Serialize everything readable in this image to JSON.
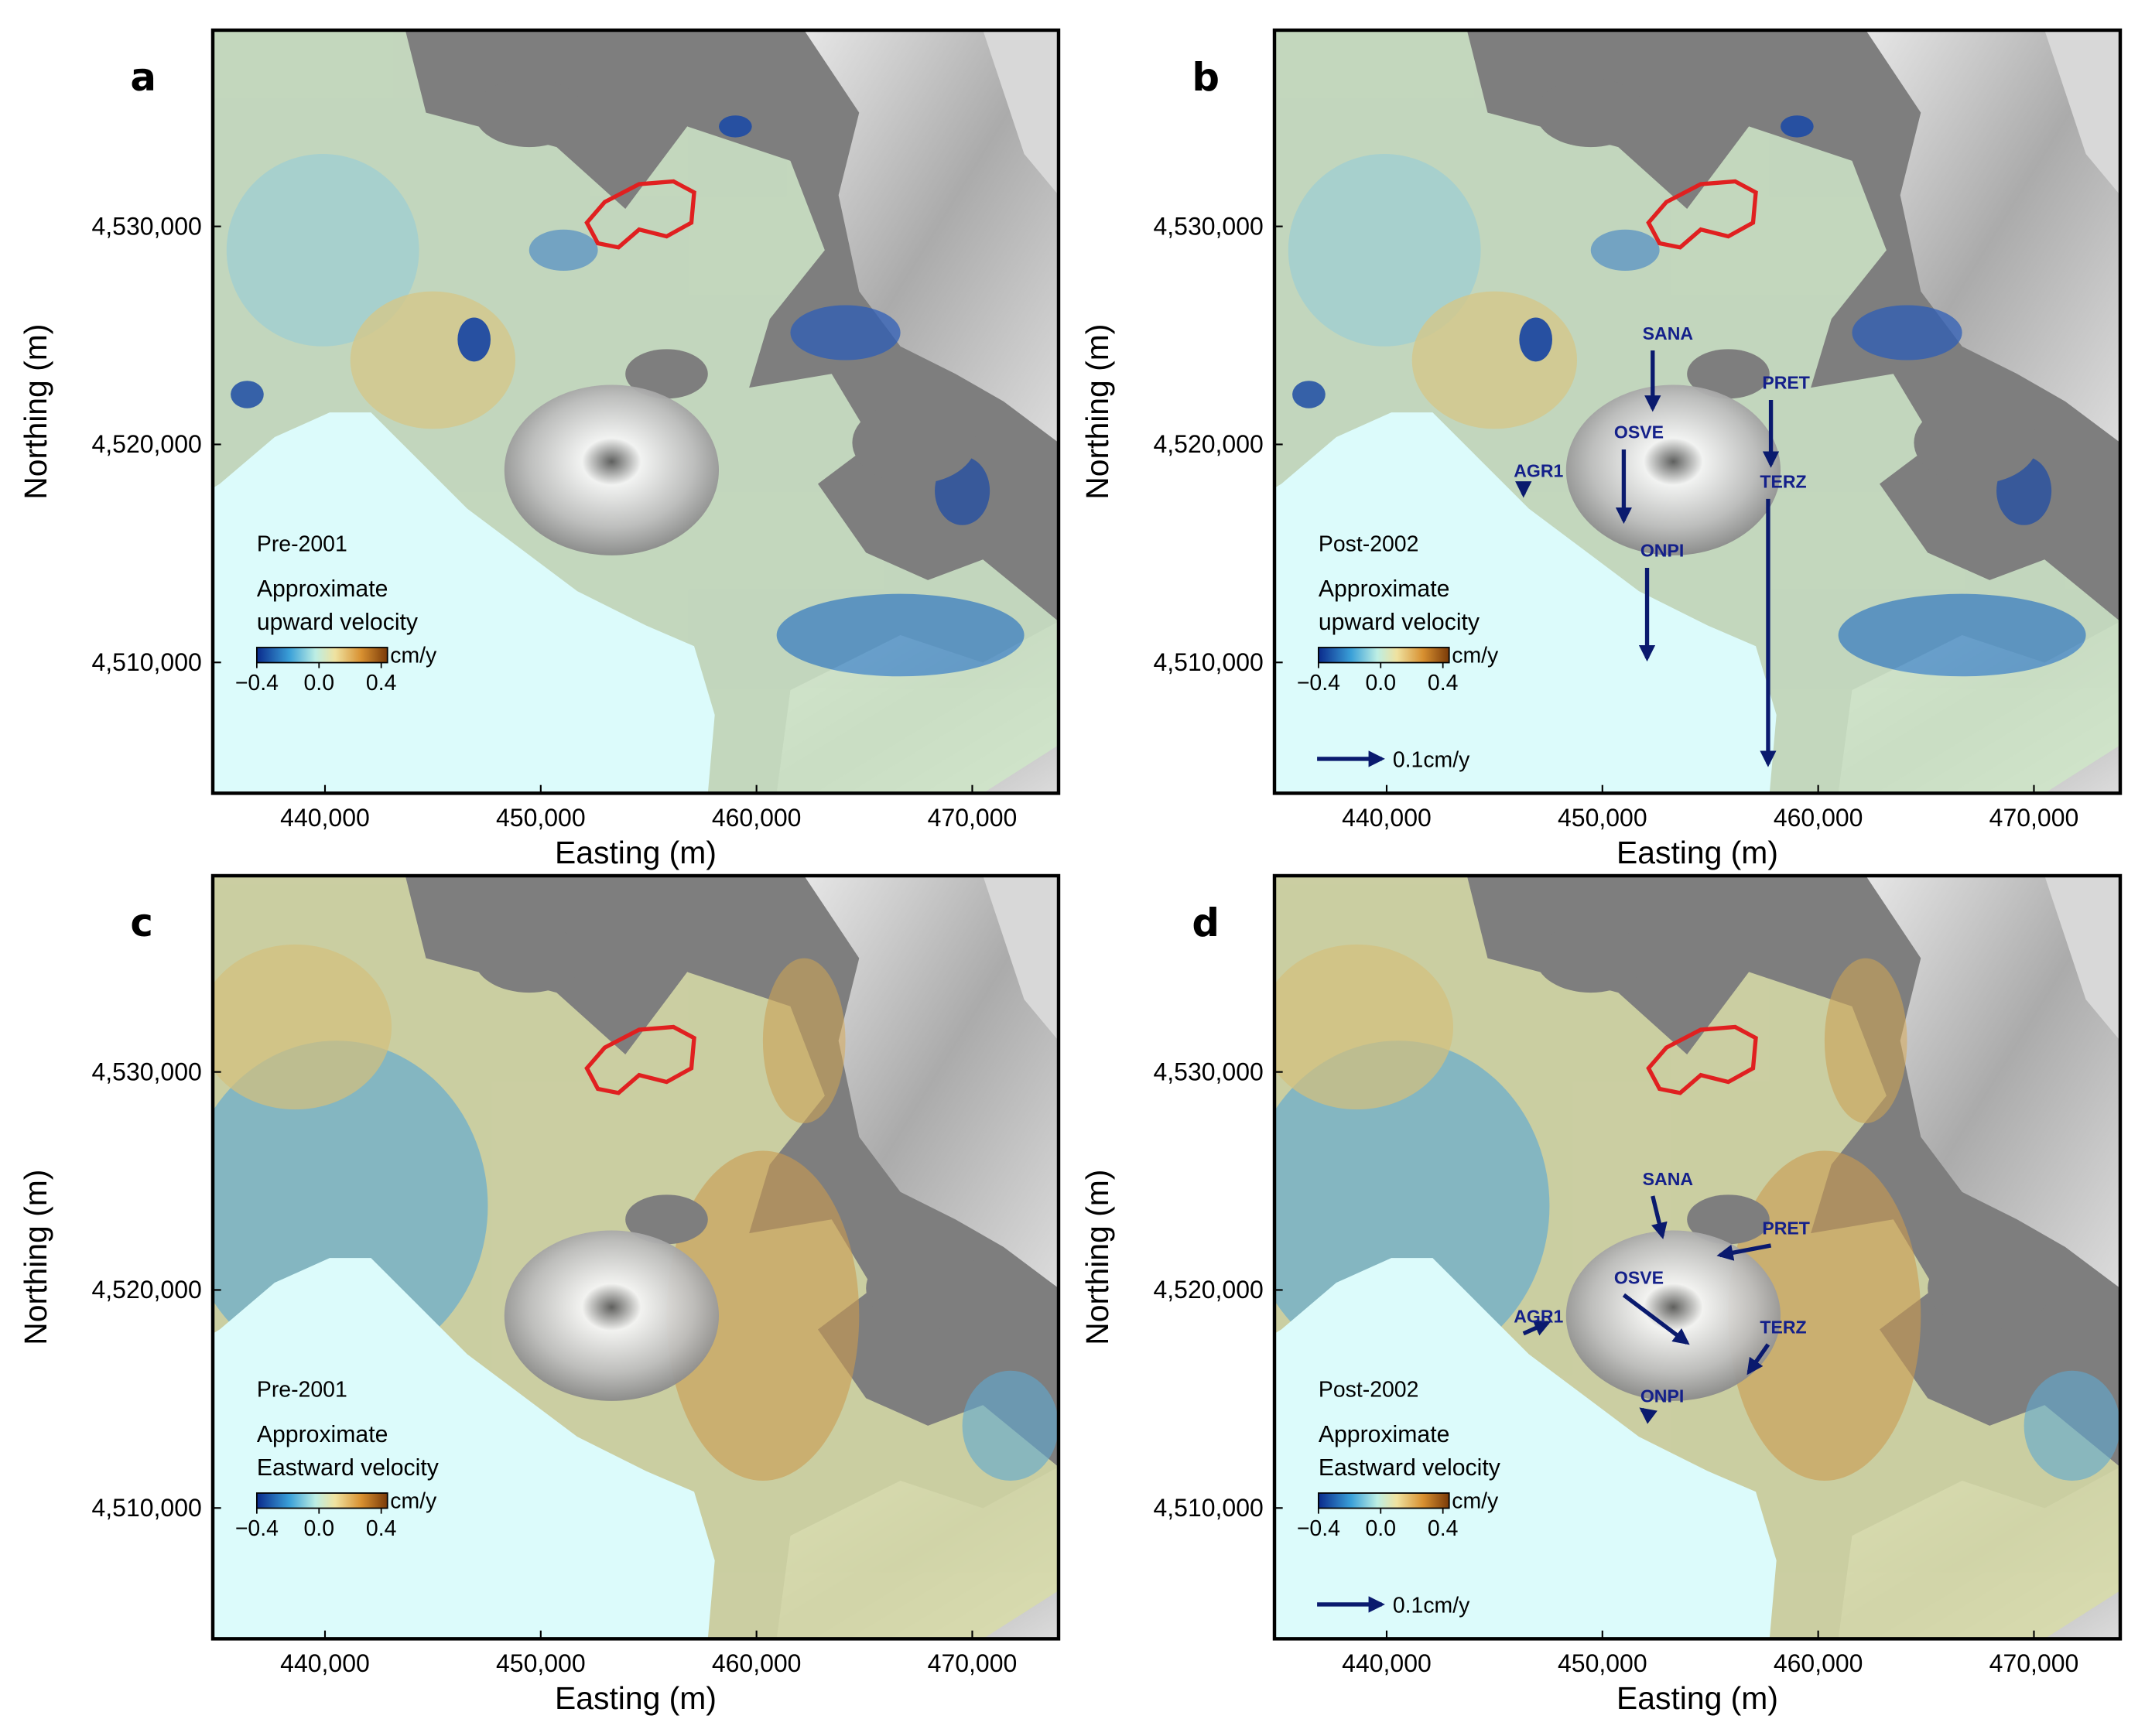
{
  "chart_data": [
    {
      "type": "map",
      "label": "a",
      "period": "Pre-2001",
      "legend_lines": [
        "Approximate",
        "upward velocity"
      ],
      "colorbar": {
        "clim": [
          -0.4,
          0.44
        ],
        "ticks": [
          {
            "value": -0.4,
            "label": "−0.4"
          },
          {
            "value": 0,
            "label": "0.0"
          },
          0.4
        ],
        "unit": "cm/y"
      },
      "xlim": [
        434800,
        474000
      ],
      "ylim": [
        4504000,
        4539000
      ],
      "xticks": [
        {
          "value": 440000,
          "label": "440,000"
        },
        {
          "value": 450000,
          "label": "450,000"
        },
        {
          "value": 460000,
          "label": "460,000"
        },
        {
          "value": 470000,
          "label": "470,000"
        }
      ],
      "yticks": [
        {
          "value": 4510000,
          "label": "4,510,000"
        },
        {
          "value": 4520000,
          "label": "4,520,000"
        },
        {
          "value": 4530000,
          "label": "4,530,000"
        }
      ],
      "xlabel": "Easting (m)",
      "ylabel": "Northing (m)"
    },
    {
      "type": "map",
      "label": "b",
      "period": "Post-2002",
      "legend_lines": [
        "Approximate",
        "upward velocity"
      ],
      "colorbar": {
        "clim": [
          -0.4,
          0.44
        ],
        "ticks": [
          {
            "value": -0.4,
            "label": "−0.4"
          },
          {
            "value": 0,
            "label": "0.0"
          },
          0.4
        ],
        "unit": "cm/y"
      },
      "xlim": [
        434800,
        474000
      ],
      "ylim": [
        4504000,
        4539000
      ],
      "xticks": [
        {
          "value": 440000,
          "label": "440,000"
        },
        {
          "value": 450000,
          "label": "450,000"
        },
        {
          "value": 460000,
          "label": "460,000"
        },
        {
          "value": 470000,
          "label": "470,000"
        }
      ],
      "yticks": [
        {
          "value": 4510000,
          "label": "4,510,000"
        },
        {
          "value": 4520000,
          "label": "4,520,000"
        },
        {
          "value": 4530000,
          "label": "4,530,000"
        }
      ],
      "xlabel": "Easting (m)",
      "ylabel": "Northing (m)",
      "stations": [
        {
          "name": "SANA",
          "easting": 452330,
          "northing": 4524310,
          "up": -0.09
        },
        {
          "name": "OSVE",
          "easting": 450990,
          "northing": 4519770,
          "up": -0.11
        },
        {
          "name": "AGR1",
          "easting": 446340,
          "northing": 4518000,
          "up": -0.01
        },
        {
          "name": "ONPI",
          "easting": 452070,
          "northing": 4514340,
          "up": -0.14
        },
        {
          "name": "PRET",
          "easting": 457810,
          "northing": 4522040,
          "up": -0.1
        },
        {
          "name": "TERZ",
          "easting": 457680,
          "northing": 4517500,
          "up": -0.41
        }
      ],
      "scale_arrow": {
        "value": 0.1,
        "label": "0.1cm/y"
      }
    },
    {
      "type": "map",
      "label": "c",
      "period": "Pre-2001",
      "legend_lines": [
        "Approximate",
        "Eastward velocity"
      ],
      "colorbar": {
        "clim": [
          -0.4,
          0.44
        ],
        "ticks": [
          {
            "value": -0.4,
            "label": "−0.4"
          },
          {
            "value": 0,
            "label": "0.0"
          },
          0.4
        ],
        "unit": "cm/y"
      },
      "xlim": [
        434800,
        474000
      ],
      "ylim": [
        4504000,
        4539000
      ],
      "xticks": [
        {
          "value": 440000,
          "label": "440,000"
        },
        {
          "value": 450000,
          "label": "450,000"
        },
        {
          "value": 460000,
          "label": "460,000"
        },
        {
          "value": 470000,
          "label": "470,000"
        }
      ],
      "yticks": [
        {
          "value": 4510000,
          "label": "4,510,000"
        },
        {
          "value": 4520000,
          "label": "4,520,000"
        },
        {
          "value": 4530000,
          "label": "4,530,000"
        }
      ],
      "xlabel": "Easting (m)",
      "ylabel": "Northing (m)"
    },
    {
      "type": "map",
      "label": "d",
      "period": "Post-2002",
      "legend_lines": [
        "Approximate",
        "Eastward velocity"
      ],
      "colorbar": {
        "clim": [
          -0.4,
          0.44
        ],
        "ticks": [
          {
            "value": -0.4,
            "label": "−0.4"
          },
          {
            "value": 0,
            "label": "0.0"
          },
          0.4
        ],
        "unit": "cm/y"
      },
      "xlim": [
        434800,
        474000
      ],
      "ylim": [
        4504000,
        4539000
      ],
      "xticks": [
        {
          "value": 440000,
          "label": "440,000"
        },
        {
          "value": 450000,
          "label": "450,000"
        },
        {
          "value": 460000,
          "label": "460,000"
        },
        {
          "value": 470000,
          "label": "470,000"
        }
      ],
      "yticks": [
        {
          "value": 4510000,
          "label": "4,510,000"
        },
        {
          "value": 4520000,
          "label": "4,520,000"
        },
        {
          "value": 4530000,
          "label": "4,530,000"
        }
      ],
      "xlabel": "Easting (m)",
      "ylabel": "Northing (m)",
      "stations": [
        {
          "name": "SANA",
          "easting": 452330,
          "northing": 4524310,
          "east": 0.015,
          "north": -0.062
        },
        {
          "name": "OSVE",
          "easting": 450990,
          "northing": 4519770,
          "east": 0.098,
          "north": -0.074
        },
        {
          "name": "AGR1",
          "easting": 446340,
          "northing": 4518000,
          "east": 0.038,
          "north": 0.017
        },
        {
          "name": "ONPI",
          "easting": 452070,
          "northing": 4514340,
          "east": -0.008,
          "north": 0.006
        },
        {
          "name": "PRET",
          "easting": 457810,
          "northing": 4522040,
          "east": -0.079,
          "north": -0.015
        },
        {
          "name": "TERZ",
          "easting": 457680,
          "northing": 4517500,
          "east": -0.03,
          "north": -0.043
        }
      ],
      "scale_arrow": {
        "value": 0.1,
        "label": "0.1cm/y"
      }
    }
  ]
}
